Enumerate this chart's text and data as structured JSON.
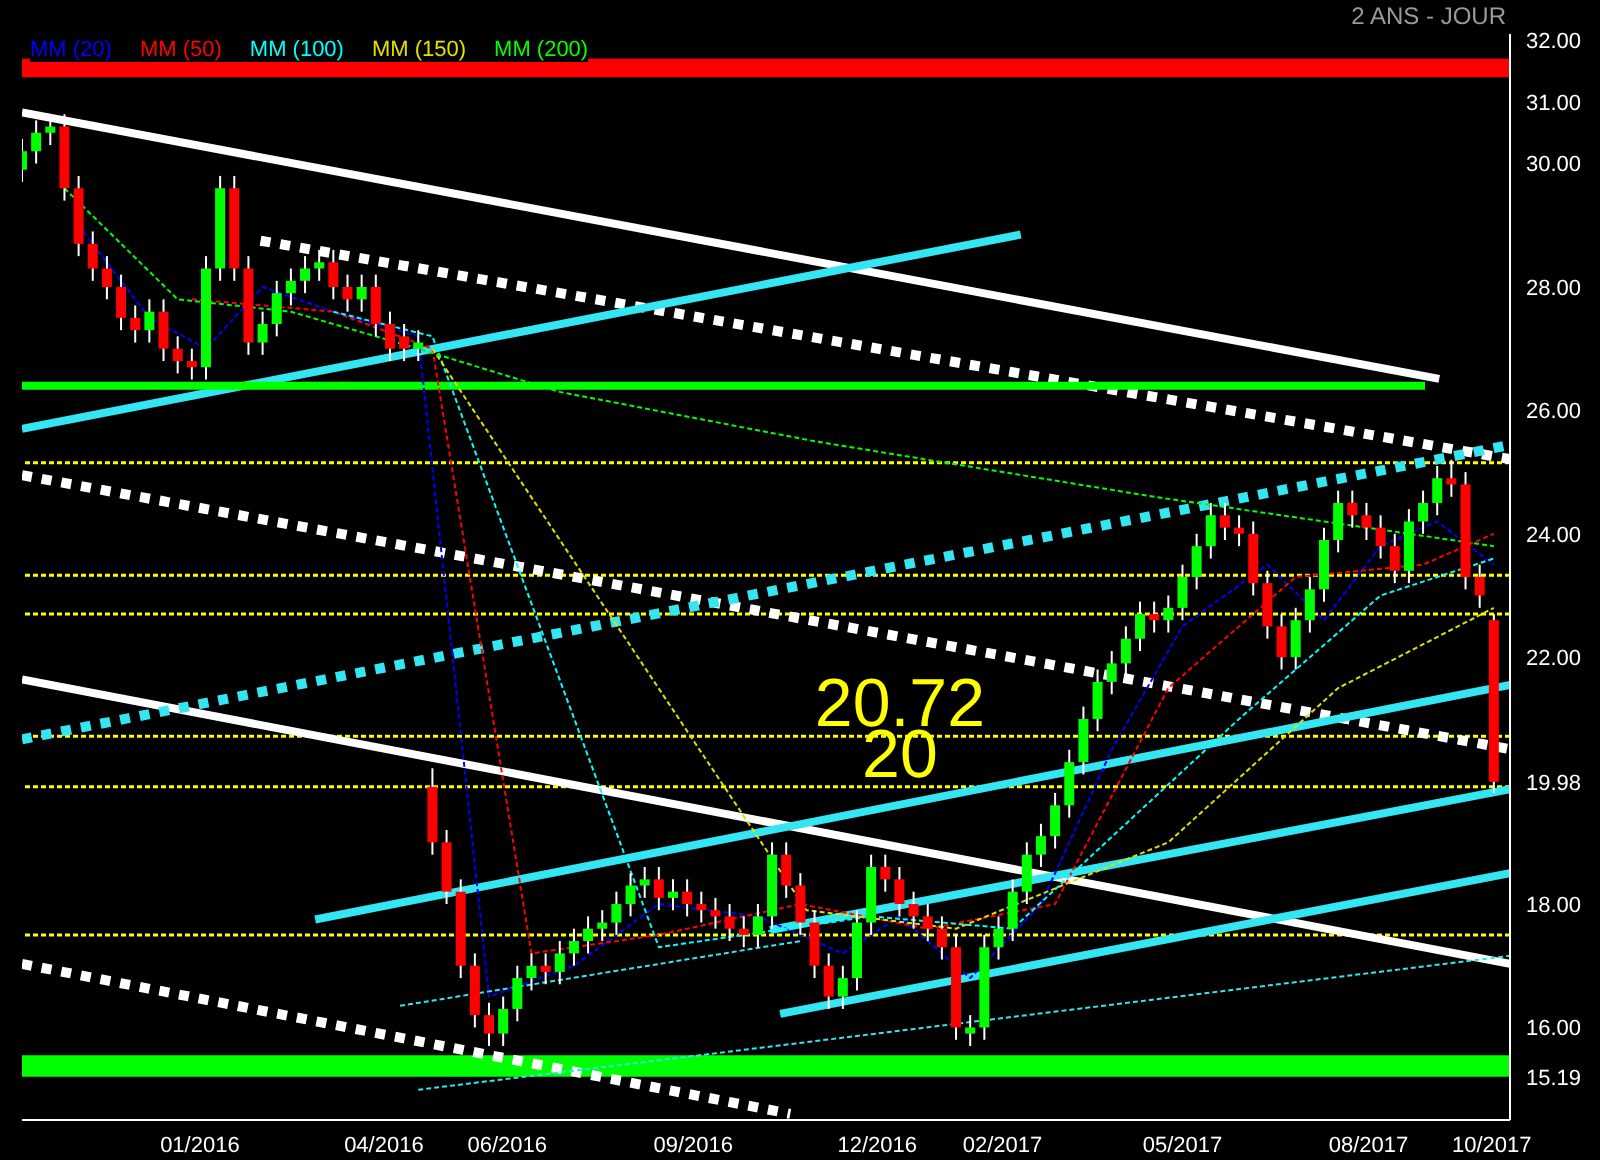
{
  "chart_data": {
    "type": "candlestick",
    "subtitle": "2 ANS - JOUR",
    "x": [
      "2015-10-05",
      "2015-10-12",
      "2015-10-19",
      "2015-10-26",
      "2015-11-02",
      "2015-11-09",
      "2015-11-16",
      "2015-11-23",
      "2015-11-30",
      "2015-12-07",
      "2015-12-14",
      "2015-12-21",
      "2015-12-28",
      "2016-01-04",
      "2016-01-11",
      "2016-01-18",
      "2016-01-25",
      "2016-02-01",
      "2016-02-08",
      "2016-02-15",
      "2016-02-22",
      "2016-02-29",
      "2016-03-07",
      "2016-03-14",
      "2016-03-21",
      "2016-03-28",
      "2016-04-04",
      "2016-04-11",
      "2016-04-18",
      "2016-04-25",
      "2016-05-02",
      "2016-05-09",
      "2016-05-16",
      "2016-05-23",
      "2016-05-30",
      "2016-06-06",
      "2016-06-13",
      "2016-06-20",
      "2016-06-27",
      "2016-07-04",
      "2016-07-11",
      "2016-07-18",
      "2016-07-25",
      "2016-08-01",
      "2016-08-08",
      "2016-08-15",
      "2016-08-22",
      "2016-08-29",
      "2016-09-05",
      "2016-09-12",
      "2016-09-19",
      "2016-09-26",
      "2016-10-03",
      "2016-10-10",
      "2016-10-17",
      "2016-10-24",
      "2016-10-31",
      "2016-11-07",
      "2016-11-14",
      "2016-11-21",
      "2016-11-28",
      "2016-12-05",
      "2016-12-12",
      "2016-12-19",
      "2016-12-26",
      "2017-01-02",
      "2017-01-09",
      "2017-01-16",
      "2017-01-23",
      "2017-01-30",
      "2017-02-06",
      "2017-02-13",
      "2017-02-20",
      "2017-02-27",
      "2017-03-06",
      "2017-03-13",
      "2017-03-20",
      "2017-03-27",
      "2017-04-03",
      "2017-04-10",
      "2017-04-17",
      "2017-04-24",
      "2017-05-01",
      "2017-05-08",
      "2017-05-15",
      "2017-05-22",
      "2017-05-29",
      "2017-06-05",
      "2017-06-12",
      "2017-06-19",
      "2017-06-26",
      "2017-07-03",
      "2017-07-10",
      "2017-07-17",
      "2017-07-24",
      "2017-07-31",
      "2017-08-07",
      "2017-08-14",
      "2017-08-21",
      "2017-08-28",
      "2017-09-04",
      "2017-09-11",
      "2017-09-18",
      "2017-09-25",
      "2017-10-02"
    ],
    "ohlc": [
      [
        29.9,
        30.4,
        29.7,
        30.2
      ],
      [
        30.2,
        30.7,
        30.0,
        30.5
      ],
      [
        30.5,
        30.8,
        30.3,
        30.6
      ],
      [
        30.6,
        30.8,
        29.4,
        29.6
      ],
      [
        29.6,
        29.8,
        28.5,
        28.7
      ],
      [
        28.7,
        28.9,
        28.1,
        28.3
      ],
      [
        28.3,
        28.5,
        27.8,
        28.0
      ],
      [
        28.0,
        28.2,
        27.3,
        27.5
      ],
      [
        27.5,
        27.7,
        27.1,
        27.3
      ],
      [
        27.3,
        27.8,
        27.1,
        27.6
      ],
      [
        27.6,
        27.8,
        26.8,
        27.0
      ],
      [
        27.0,
        27.2,
        26.6,
        26.8
      ],
      [
        26.8,
        27.0,
        26.5,
        26.7
      ],
      [
        26.7,
        28.5,
        26.5,
        28.3
      ],
      [
        28.3,
        29.8,
        28.1,
        29.6
      ],
      [
        29.6,
        29.8,
        28.1,
        28.3
      ],
      [
        28.3,
        28.5,
        26.9,
        27.1
      ],
      [
        27.1,
        27.6,
        26.9,
        27.4
      ],
      [
        27.4,
        28.1,
        27.2,
        27.9
      ],
      [
        27.9,
        28.3,
        27.7,
        28.1
      ],
      [
        28.1,
        28.5,
        27.9,
        28.3
      ],
      [
        28.3,
        28.6,
        28.1,
        28.4
      ],
      [
        28.4,
        28.6,
        27.8,
        28.0
      ],
      [
        28.0,
        28.2,
        27.6,
        27.8
      ],
      [
        27.8,
        28.2,
        27.6,
        28.0
      ],
      [
        28.0,
        28.2,
        27.2,
        27.4
      ],
      [
        27.4,
        27.6,
        26.8,
        27.0
      ],
      [
        27.2,
        27.4,
        26.8,
        27.0
      ],
      [
        27.0,
        27.3,
        26.8,
        27.1
      ],
      [
        19.9,
        20.2,
        18.8,
        19.0
      ],
      [
        19.0,
        19.2,
        18.0,
        18.2
      ],
      [
        18.2,
        18.4,
        16.8,
        17.0
      ],
      [
        17.0,
        17.2,
        16.0,
        16.2
      ],
      [
        16.2,
        16.4,
        15.7,
        15.9
      ],
      [
        15.9,
        16.5,
        15.7,
        16.3
      ],
      [
        16.3,
        17.0,
        16.1,
        16.8
      ],
      [
        16.8,
        17.2,
        16.6,
        17.0
      ],
      [
        17.0,
        17.2,
        16.7,
        16.9
      ],
      [
        16.9,
        17.4,
        16.7,
        17.2
      ],
      [
        17.2,
        17.6,
        17.0,
        17.4
      ],
      [
        17.4,
        17.8,
        17.2,
        17.6
      ],
      [
        17.6,
        17.9,
        17.4,
        17.7
      ],
      [
        17.7,
        18.2,
        17.5,
        18.0
      ],
      [
        18.0,
        18.5,
        17.8,
        18.3
      ],
      [
        18.3,
        18.6,
        18.1,
        18.4
      ],
      [
        18.4,
        18.6,
        17.9,
        18.1
      ],
      [
        18.1,
        18.4,
        17.9,
        18.2
      ],
      [
        18.2,
        18.4,
        17.8,
        18.0
      ],
      [
        18.0,
        18.2,
        17.7,
        17.9
      ],
      [
        17.9,
        18.1,
        17.6,
        17.8
      ],
      [
        17.8,
        18.0,
        17.4,
        17.6
      ],
      [
        17.6,
        17.8,
        17.3,
        17.5
      ],
      [
        17.5,
        18.0,
        17.3,
        17.8
      ],
      [
        17.8,
        19.0,
        17.6,
        18.8
      ],
      [
        18.8,
        19.0,
        18.1,
        18.3
      ],
      [
        18.3,
        18.5,
        17.5,
        17.7
      ],
      [
        17.7,
        17.9,
        16.8,
        17.0
      ],
      [
        17.0,
        17.2,
        16.3,
        16.5
      ],
      [
        16.5,
        17.0,
        16.3,
        16.8
      ],
      [
        16.8,
        17.9,
        16.6,
        17.7
      ],
      [
        17.7,
        18.8,
        17.5,
        18.6
      ],
      [
        18.6,
        18.8,
        18.2,
        18.4
      ],
      [
        18.4,
        18.6,
        17.8,
        18.0
      ],
      [
        18.0,
        18.2,
        17.6,
        17.8
      ],
      [
        17.8,
        18.0,
        17.4,
        17.6
      ],
      [
        17.6,
        17.8,
        17.1,
        17.3
      ],
      [
        17.3,
        17.5,
        15.8,
        16.0
      ],
      [
        15.9,
        16.2,
        15.7,
        16.0
      ],
      [
        16.0,
        17.5,
        15.8,
        17.3
      ],
      [
        17.3,
        17.8,
        17.1,
        17.6
      ],
      [
        17.6,
        18.4,
        17.4,
        18.2
      ],
      [
        18.2,
        19.0,
        18.0,
        18.8
      ],
      [
        18.8,
        19.3,
        18.6,
        19.1
      ],
      [
        19.1,
        19.8,
        18.9,
        19.6
      ],
      [
        19.6,
        20.5,
        19.4,
        20.3
      ],
      [
        20.3,
        21.2,
        20.1,
        21.0
      ],
      [
        21.0,
        21.8,
        20.8,
        21.6
      ],
      [
        21.6,
        22.1,
        21.4,
        21.9
      ],
      [
        21.9,
        22.5,
        21.7,
        22.3
      ],
      [
        22.3,
        22.9,
        22.1,
        22.7
      ],
      [
        22.7,
        22.9,
        22.4,
        22.6
      ],
      [
        22.6,
        23.0,
        22.4,
        22.8
      ],
      [
        22.8,
        23.5,
        22.6,
        23.3
      ],
      [
        23.3,
        24.0,
        23.1,
        23.8
      ],
      [
        23.8,
        24.5,
        23.6,
        24.3
      ],
      [
        24.3,
        24.5,
        23.9,
        24.1
      ],
      [
        24.1,
        24.3,
        23.8,
        24.0
      ],
      [
        24.0,
        24.2,
        23.0,
        23.2
      ],
      [
        23.2,
        23.4,
        22.3,
        22.5
      ],
      [
        22.5,
        22.7,
        21.8,
        22.0
      ],
      [
        22.0,
        22.8,
        21.8,
        22.6
      ],
      [
        22.6,
        23.3,
        22.4,
        23.1
      ],
      [
        23.1,
        24.1,
        22.9,
        23.9
      ],
      [
        23.9,
        24.7,
        23.7,
        24.5
      ],
      [
        24.5,
        24.7,
        24.1,
        24.3
      ],
      [
        24.3,
        24.5,
        23.9,
        24.1
      ],
      [
        24.1,
        24.3,
        23.6,
        23.8
      ],
      [
        23.8,
        24.0,
        23.2,
        23.4
      ],
      [
        23.4,
        24.4,
        23.2,
        24.2
      ],
      [
        24.2,
        24.7,
        24.0,
        24.5
      ],
      [
        24.5,
        25.1,
        24.3,
        24.9
      ],
      [
        24.9,
        25.2,
        24.6,
        24.8
      ],
      [
        24.8,
        25.0,
        23.1,
        23.3
      ],
      [
        23.3,
        23.5,
        22.8,
        23.0
      ],
      [
        22.6,
        22.7,
        19.8,
        19.98
      ]
    ],
    "series": [
      {
        "name": "MM (20)",
        "type": "line",
        "color": "#0000ff",
        "line_style": "dashed",
        "x": [
          "2015-11-02",
          "2015-12-07",
          "2016-01-04",
          "2016-02-01",
          "2016-03-07",
          "2016-04-18",
          "2016-05-23",
          "2016-07-04",
          "2016-08-15",
          "2016-10-03",
          "2016-11-14",
          "2016-12-12",
          "2017-01-16",
          "2017-02-20",
          "2017-03-27",
          "2017-05-01",
          "2017-06-12",
          "2017-07-10",
          "2017-08-07",
          "2017-09-04",
          "2017-10-02"
        ],
        "values": [
          29.0,
          27.5,
          27.0,
          28.0,
          27.6,
          27.2,
          16.5,
          17.0,
          18.0,
          17.8,
          17.2,
          17.8,
          16.8,
          18.0,
          20.5,
          22.5,
          23.5,
          22.6,
          23.8,
          24.2,
          23.5
        ]
      },
      {
        "name": "MM (50)",
        "type": "line",
        "color": "#ff0000",
        "line_style": "dashed",
        "x": [
          "2015-12-28",
          "2016-03-07",
          "2016-04-25",
          "2016-06-13",
          "2016-08-15",
          "2016-10-24",
          "2016-12-26",
          "2017-02-27",
          "2017-04-24",
          "2017-06-26",
          "2017-08-28",
          "2017-10-02"
        ],
        "values": [
          27.8,
          27.6,
          27.0,
          17.2,
          17.5,
          18.0,
          17.6,
          18.0,
          21.5,
          23.3,
          23.5,
          24.0
        ]
      },
      {
        "name": "MM (100)",
        "type": "line",
        "color": "#00ffff",
        "line_style": "dashed",
        "x": [
          "2016-03-07",
          "2016-04-25",
          "2016-08-15",
          "2016-11-28",
          "2017-02-06",
          "2017-05-29",
          "2017-08-07",
          "2017-10-02"
        ],
        "values": [
          27.6,
          27.2,
          17.3,
          17.8,
          17.6,
          21.0,
          23.0,
          23.6
        ]
      },
      {
        "name": "MM (150)",
        "type": "line",
        "color": "#e0e000",
        "line_style": "dashed",
        "x": [
          "2016-04-25",
          "2016-10-27",
          "2017-01-09",
          "2017-04-24",
          "2017-07-17",
          "2017-10-02"
        ],
        "values": [
          27.0,
          17.9,
          17.6,
          19.0,
          21.5,
          22.8
        ]
      },
      {
        "name": "MM (200)",
        "type": "line",
        "color": "#00ff00",
        "line_style": "dashed",
        "x": [
          "2015-10-26",
          "2015-12-21",
          "2016-02-15",
          "2016-04-18",
          "2016-06-27",
          "2016-10-31",
          "2017-04-17",
          "2017-10-02"
        ],
        "values": [
          29.6,
          27.8,
          27.6,
          27.0,
          26.3,
          25.5,
          24.6,
          23.8
        ]
      },
      {
        "type": "line",
        "color": "#ffffff",
        "line_style": "solid",
        "x": [
          "2015-10-05",
          "2017-09-05"
        ],
        "values": [
          30.83,
          26.51
        ]
      },
      {
        "type": "line",
        "color": "#ffffff",
        "line_style": "solid",
        "x": [
          "2015-10-05",
          "2017-10-10"
        ],
        "values": [
          21.64,
          17.03
        ]
      },
      {
        "type": "line",
        "color": "#ffffff",
        "line_style": "dotted",
        "x": [
          "2016-01-31",
          "2017-10-10"
        ],
        "values": [
          28.75,
          25.21
        ]
      },
      {
        "type": "line",
        "color": "#ffffff",
        "line_style": "dotted",
        "x": [
          "2015-10-05",
          "2017-10-10"
        ],
        "values": [
          24.95,
          20.51
        ]
      },
      {
        "type": "line",
        "color": "#ffffff",
        "line_style": "dotted",
        "x": [
          "2015-10-05",
          "2016-10-19"
        ],
        "values": [
          17.03,
          14.6
        ]
      },
      {
        "type": "line",
        "color": "#33e6f2",
        "line_style": "solid",
        "x": [
          "2015-10-05",
          "2017-02-10"
        ],
        "values": [
          25.7,
          28.85
        ]
      },
      {
        "type": "line",
        "color": "#33e6f2",
        "line_style": "dotted",
        "x": [
          "2015-10-05",
          "2017-10-10"
        ],
        "values": [
          20.67,
          25.44
        ]
      },
      {
        "type": "line",
        "color": "#33e6f2",
        "line_style": "solid",
        "x": [
          "2016-02-27",
          "2017-10-10"
        ],
        "values": [
          17.75,
          21.55
        ]
      },
      {
        "type": "line",
        "color": "#33e6f2",
        "line_style": "solid",
        "x": [
          "2016-10-09",
          "2017-10-10"
        ],
        "values": [
          17.58,
          19.86
        ]
      },
      {
        "type": "line",
        "color": "#33e6f2",
        "line_style": "solid",
        "x": [
          "2016-10-14",
          "2017-10-10"
        ],
        "values": [
          16.22,
          18.5
        ]
      },
      {
        "type": "line",
        "color": "#33e6f2",
        "line_style": "dashed",
        "x": [
          "2016-04-09",
          "2016-10-24"
        ],
        "values": [
          16.35,
          17.4
        ]
      },
      {
        "type": "line",
        "color": "#33e6f2",
        "line_style": "dashed",
        "x": [
          "2016-04-18",
          "2017-10-10"
        ],
        "values": [
          14.99,
          17.16
        ]
      },
      {
        "type": "line",
        "color": "#00ff00",
        "line_style": "solid",
        "x": [
          "2015-10-05",
          "2017-08-29"
        ],
        "values": [
          26.4,
          26.4
        ]
      }
    ],
    "ref_lines": [
      {
        "axis": "y",
        "value": 25.15,
        "color": "#ffff00",
        "line_style": "dashed"
      },
      {
        "axis": "y",
        "value": 23.33,
        "color": "#ffff00",
        "line_style": "dashed"
      },
      {
        "axis": "y",
        "value": 22.7,
        "color": "#ffff00",
        "line_style": "dashed"
      },
      {
        "axis": "y",
        "value": 20.72,
        "label": "20.72",
        "color": "#ffff00",
        "line_style": "dashed"
      },
      {
        "axis": "y",
        "value": 19.9,
        "label": "20",
        "color": "#ffff00",
        "line_style": "dashed"
      },
      {
        "axis": "y",
        "value": 17.5,
        "color": "#ffff00",
        "line_style": "dashed"
      }
    ],
    "bands": [
      {
        "axis": "y",
        "from": 31.4,
        "to": 31.7,
        "color": "#ff0000"
      },
      {
        "axis": "y",
        "from": 15.2,
        "to": 15.55,
        "color": "#00ff00"
      }
    ],
    "xlim": [
      "2015-10-05",
      "2017-10-10"
    ],
    "xticks": [
      {
        "value": "2016-01-01",
        "label": "01/2016"
      },
      {
        "value": "2016-04-01",
        "label": "04/2016"
      },
      {
        "value": "2016-06-01",
        "label": "06/2016"
      },
      {
        "value": "2016-09-01",
        "label": "09/2016"
      },
      {
        "value": "2016-12-01",
        "label": "12/2016"
      },
      {
        "value": "2017-02-01",
        "label": "02/2017"
      },
      {
        "value": "2017-05-01",
        "label": "05/2017"
      },
      {
        "value": "2017-08-01",
        "label": "08/2017"
      },
      {
        "value": "2017-10-01",
        "label": "10/2017"
      }
    ],
    "ylim": [
      14.5,
      32.1
    ],
    "yticks": [
      {
        "value": 15.19,
        "label": "15.19"
      },
      {
        "value": 16,
        "label": "16.00"
      },
      {
        "value": 18,
        "label": "18.00"
      },
      {
        "value": 19.98,
        "label": "19.98"
      },
      {
        "value": 22,
        "label": "22.00"
      },
      {
        "value": 24,
        "label": "24.00"
      },
      {
        "value": 26,
        "label": "26.00"
      },
      {
        "value": 28,
        "label": "28.00"
      },
      {
        "value": 30,
        "label": "30.00"
      },
      {
        "value": 31,
        "label": "31.00"
      },
      {
        "value": 32,
        "label": "32.00"
      }
    ],
    "legend": "top left",
    "grid": false
  }
}
